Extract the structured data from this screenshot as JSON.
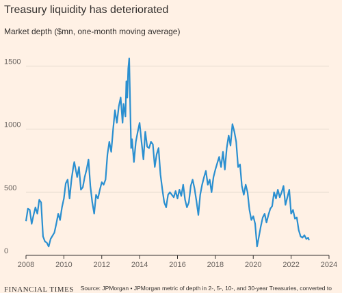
{
  "chart_data": {
    "type": "line",
    "title": "Treasury liquidity has deteriorated",
    "subtitle": "Market depth ($mn, one-month moving average)",
    "source": "Source: JPMorgan • JPMorgan metric of depth in 2-, 5-, 10-, and 30-year Treasuries, converted to",
    "brand": "FINANCIAL TIMES",
    "xlim": [
      2008,
      2024
    ],
    "xticks": [
      2008,
      2010,
      2012,
      2014,
      2016,
      2018,
      2020,
      2022,
      2024
    ],
    "ylim": [
      0,
      1600
    ],
    "yticks": [
      0,
      500,
      1000,
      1500
    ],
    "grid": true,
    "series": [
      {
        "name": "Market depth",
        "color": "#2a8fd0",
        "x": [
          2008.0,
          2008.1,
          2008.2,
          2008.3,
          2008.4,
          2008.5,
          2008.6,
          2008.7,
          2008.8,
          2008.9,
          2009.0,
          2009.1,
          2009.2,
          2009.3,
          2009.5,
          2009.6,
          2009.7,
          2009.8,
          2009.9,
          2010.0,
          2010.1,
          2010.2,
          2010.3,
          2010.4,
          2010.5,
          2010.55,
          2010.7,
          2010.8,
          2010.9,
          2011.0,
          2011.1,
          2011.2,
          2011.3,
          2011.4,
          2011.5,
          2011.6,
          2011.7,
          2011.8,
          2011.9,
          2012.0,
          2012.1,
          2012.2,
          2012.3,
          2012.4,
          2012.5,
          2012.6,
          2012.7,
          2012.8,
          2012.9,
          2013.0,
          2013.1,
          2013.15,
          2013.25,
          2013.3,
          2013.35,
          2013.4,
          2013.45,
          2013.5,
          2013.55,
          2013.6,
          2013.7,
          2013.8,
          2013.9,
          2014.0,
          2014.1,
          2014.2,
          2014.3,
          2014.4,
          2014.5,
          2014.6,
          2014.7,
          2014.8,
          2014.9,
          2015.0,
          2015.1,
          2015.2,
          2015.3,
          2015.4,
          2015.5,
          2015.6,
          2015.8,
          2015.9,
          2016.0,
          2016.1,
          2016.2,
          2016.3,
          2016.4,
          2016.5,
          2016.6,
          2016.7,
          2016.8,
          2016.9,
          2017.0,
          2017.1,
          2017.2,
          2017.3,
          2017.4,
          2017.5,
          2017.6,
          2017.7,
          2017.8,
          2017.9,
          2018.0,
          2018.1,
          2018.2,
          2018.3,
          2018.4,
          2018.5,
          2018.6,
          2018.7,
          2018.8,
          2018.9,
          2019.0,
          2019.1,
          2019.2,
          2019.3,
          2019.4,
          2019.5,
          2019.6,
          2019.7,
          2019.8,
          2019.9,
          2020.0,
          2020.1,
          2020.2,
          2020.3,
          2020.4,
          2020.5,
          2020.6,
          2020.7,
          2020.8,
          2020.9,
          2021.0,
          2021.1,
          2021.2,
          2021.3,
          2021.4,
          2021.5,
          2021.6,
          2021.7,
          2021.8,
          2021.9,
          2022.0,
          2022.1,
          2022.2,
          2022.3,
          2022.4,
          2022.5,
          2022.6,
          2022.7,
          2022.8,
          2022.9,
          2022.95
        ],
        "values": [
          270,
          370,
          360,
          250,
          320,
          380,
          330,
          440,
          420,
          150,
          110,
          100,
          70,
          130,
          180,
          250,
          330,
          280,
          380,
          450,
          570,
          600,
          450,
          600,
          700,
          740,
          620,
          700,
          520,
          540,
          620,
          680,
          760,
          550,
          420,
          330,
          480,
          450,
          520,
          580,
          560,
          600,
          800,
          900,
          820,
          1000,
          1150,
          1050,
          1180,
          1250,
          1050,
          1200,
          1100,
          1380,
          1250,
          1480,
          1560,
          1200,
          850,
          920,
          740,
          900,
          980,
          1050,
          900,
          760,
          980,
          860,
          850,
          900,
          880,
          700,
          800,
          850,
          640,
          520,
          420,
          380,
          480,
          500,
          460,
          510,
          450,
          520,
          470,
          560,
          440,
          380,
          420,
          550,
          600,
          530,
          430,
          320,
          480,
          560,
          620,
          670,
          560,
          600,
          500,
          620,
          680,
          730,
          780,
          700,
          820,
          680,
          850,
          950,
          870,
          1040,
          980,
          900,
          700,
          720,
          550,
          480,
          560,
          500,
          360,
          280,
          310,
          250,
          70,
          150,
          230,
          300,
          330,
          260,
          320,
          370,
          390,
          500,
          450,
          520,
          460,
          500,
          550,
          400,
          460,
          520,
          330,
          360,
          290,
          300,
          200,
          150,
          140,
          160,
          130,
          140,
          120
        ]
      }
    ]
  }
}
